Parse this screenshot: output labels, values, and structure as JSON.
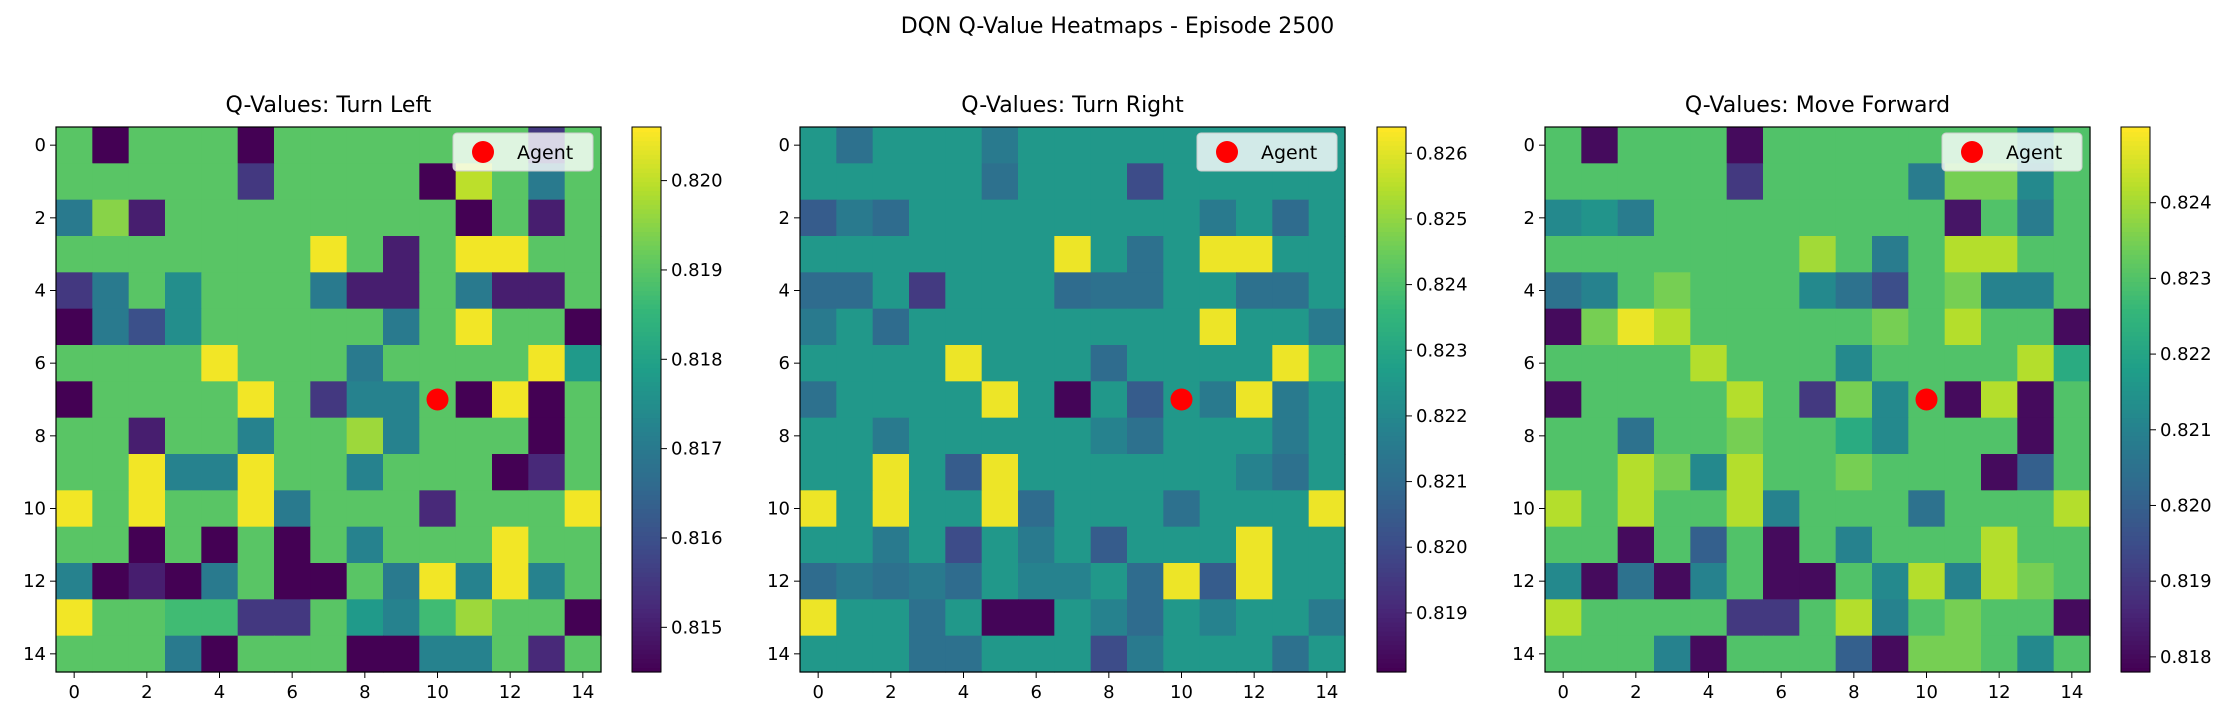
{
  "figure": {
    "title": "DQN Q-Value Heatmaps - Episode 2500"
  },
  "chart_data": [
    {
      "type": "heatmap",
      "title": "Q-Values: Turn Left",
      "colormap": "viridis",
      "vmin": 0.8145,
      "vmax": 0.8206,
      "xticks": [
        0,
        2,
        4,
        6,
        8,
        10,
        12,
        14
      ],
      "yticks": [
        0,
        2,
        4,
        6,
        8,
        10,
        12,
        14
      ],
      "colorbar_ticks": [
        0.815,
        0.816,
        0.817,
        0.818,
        0.819,
        0.82
      ],
      "legend": {
        "label": "Agent",
        "placement": "upper right"
      },
      "agent": {
        "x": 10,
        "y": 7,
        "color": "#ff0000"
      },
      "z": [
        [
          0.819,
          0.8145,
          0.819,
          0.819,
          0.819,
          0.8145,
          0.819,
          0.819,
          0.819,
          0.819,
          0.819,
          0.819,
          0.819,
          0.8155,
          0.819
        ],
        [
          0.819,
          0.819,
          0.819,
          0.819,
          0.819,
          0.8155,
          0.819,
          0.819,
          0.819,
          0.819,
          0.8145,
          0.82,
          0.819,
          0.817,
          0.819
        ],
        [
          0.817,
          0.8195,
          0.815,
          0.819,
          0.819,
          0.819,
          0.819,
          0.819,
          0.819,
          0.819,
          0.819,
          0.8145,
          0.819,
          0.815,
          0.819
        ],
        [
          0.819,
          0.819,
          0.819,
          0.819,
          0.819,
          0.819,
          0.819,
          0.8205,
          0.819,
          0.815,
          0.819,
          0.8205,
          0.8205,
          0.819,
          0.819
        ],
        [
          0.8155,
          0.817,
          0.819,
          0.8175,
          0.819,
          0.819,
          0.819,
          0.817,
          0.815,
          0.815,
          0.819,
          0.817,
          0.815,
          0.815,
          0.819
        ],
        [
          0.8145,
          0.817,
          0.816,
          0.8175,
          0.819,
          0.819,
          0.819,
          0.819,
          0.819,
          0.817,
          0.819,
          0.8205,
          0.819,
          0.819,
          0.8145
        ],
        [
          0.819,
          0.819,
          0.819,
          0.819,
          0.8205,
          0.819,
          0.819,
          0.819,
          0.817,
          0.819,
          0.819,
          0.819,
          0.819,
          0.8205,
          0.8178
        ],
        [
          0.8145,
          0.819,
          0.819,
          0.819,
          0.819,
          0.8205,
          0.819,
          0.8155,
          0.8172,
          0.8172,
          0.819,
          0.8145,
          0.8205,
          0.8145,
          0.819
        ],
        [
          0.819,
          0.819,
          0.815,
          0.819,
          0.819,
          0.8172,
          0.819,
          0.819,
          0.8197,
          0.8172,
          0.819,
          0.819,
          0.819,
          0.8145,
          0.819
        ],
        [
          0.819,
          0.819,
          0.8205,
          0.8172,
          0.8172,
          0.8205,
          0.819,
          0.819,
          0.8172,
          0.819,
          0.819,
          0.819,
          0.8145,
          0.8152,
          0.819
        ],
        [
          0.8205,
          0.819,
          0.8205,
          0.819,
          0.819,
          0.8205,
          0.817,
          0.819,
          0.819,
          0.819,
          0.8152,
          0.819,
          0.819,
          0.819,
          0.8205
        ],
        [
          0.819,
          0.819,
          0.8145,
          0.819,
          0.8145,
          0.819,
          0.8145,
          0.819,
          0.8172,
          0.819,
          0.819,
          0.819,
          0.8205,
          0.819,
          0.819
        ],
        [
          0.8172,
          0.8145,
          0.815,
          0.8145,
          0.817,
          0.819,
          0.8145,
          0.8145,
          0.819,
          0.817,
          0.8205,
          0.8172,
          0.8205,
          0.8172,
          0.819
        ],
        [
          0.8205,
          0.819,
          0.819,
          0.8187,
          0.8187,
          0.8155,
          0.8155,
          0.819,
          0.8178,
          0.8172,
          0.8187,
          0.8197,
          0.819,
          0.819,
          0.8145
        ],
        [
          0.819,
          0.819,
          0.819,
          0.817,
          0.8145,
          0.819,
          0.819,
          0.819,
          0.8145,
          0.8145,
          0.8172,
          0.8172,
          0.819,
          0.8152,
          0.819
        ]
      ]
    },
    {
      "type": "heatmap",
      "title": "Q-Values: Turn Right",
      "colormap": "viridis",
      "vmin": 0.8181,
      "vmax": 0.8264,
      "xticks": [
        0,
        2,
        4,
        6,
        8,
        10,
        12,
        14
      ],
      "yticks": [
        0,
        2,
        4,
        6,
        8,
        10,
        12,
        14
      ],
      "colorbar_ticks": [
        0.819,
        0.82,
        0.821,
        0.822,
        0.823,
        0.824,
        0.825,
        0.826
      ],
      "legend": {
        "label": "Agent",
        "placement": "upper right"
      },
      "agent": {
        "x": 10,
        "y": 7,
        "color": "#ff0000"
      },
      "z": [
        [
          0.8225,
          0.8212,
          0.8225,
          0.8225,
          0.8225,
          0.8215,
          0.8225,
          0.8225,
          0.8225,
          0.8225,
          0.8225,
          0.8225,
          0.8225,
          0.8225,
          0.8225
        ],
        [
          0.8225,
          0.8225,
          0.8225,
          0.8225,
          0.8225,
          0.8212,
          0.8225,
          0.8225,
          0.8225,
          0.82,
          0.8225,
          0.8225,
          0.8225,
          0.8225,
          0.8225
        ],
        [
          0.8205,
          0.8215,
          0.821,
          0.8225,
          0.8225,
          0.8225,
          0.8225,
          0.8225,
          0.8225,
          0.8225,
          0.8225,
          0.8215,
          0.8225,
          0.821,
          0.8225
        ],
        [
          0.8225,
          0.8225,
          0.8225,
          0.8225,
          0.8225,
          0.8225,
          0.8225,
          0.8262,
          0.8225,
          0.8212,
          0.8225,
          0.8262,
          0.8262,
          0.8225,
          0.8225
        ],
        [
          0.821,
          0.821,
          0.8225,
          0.8195,
          0.8225,
          0.8225,
          0.8225,
          0.821,
          0.8212,
          0.8212,
          0.8225,
          0.8225,
          0.8212,
          0.8212,
          0.8225
        ],
        [
          0.8215,
          0.8225,
          0.821,
          0.8225,
          0.8225,
          0.8225,
          0.8225,
          0.8225,
          0.8225,
          0.8225,
          0.8225,
          0.8262,
          0.8225,
          0.8225,
          0.8215
        ],
        [
          0.8225,
          0.8225,
          0.8225,
          0.8225,
          0.8262,
          0.8225,
          0.8225,
          0.8225,
          0.821,
          0.8225,
          0.8225,
          0.8225,
          0.8225,
          0.8262,
          0.8238
        ],
        [
          0.8212,
          0.8225,
          0.8225,
          0.8225,
          0.8225,
          0.8262,
          0.8225,
          0.8182,
          0.8225,
          0.8205,
          0.8225,
          0.8215,
          0.8262,
          0.8215,
          0.8225
        ],
        [
          0.8225,
          0.8225,
          0.8215,
          0.8225,
          0.8225,
          0.8225,
          0.8225,
          0.8225,
          0.8218,
          0.8212,
          0.8225,
          0.8225,
          0.8225,
          0.8215,
          0.8225
        ],
        [
          0.8225,
          0.8225,
          0.8262,
          0.8225,
          0.8205,
          0.8262,
          0.8225,
          0.8225,
          0.8225,
          0.8225,
          0.8225,
          0.8225,
          0.8218,
          0.8212,
          0.8225
        ],
        [
          0.8262,
          0.8225,
          0.8262,
          0.8225,
          0.8225,
          0.8262,
          0.821,
          0.8225,
          0.8225,
          0.8225,
          0.8212,
          0.8225,
          0.8225,
          0.8225,
          0.8262
        ],
        [
          0.8225,
          0.8225,
          0.8215,
          0.8225,
          0.82,
          0.8225,
          0.8215,
          0.8225,
          0.8205,
          0.8225,
          0.8225,
          0.8225,
          0.8262,
          0.8225,
          0.8225
        ],
        [
          0.821,
          0.8215,
          0.8212,
          0.8215,
          0.821,
          0.8225,
          0.8218,
          0.8218,
          0.8225,
          0.821,
          0.8262,
          0.8205,
          0.8262,
          0.8225,
          0.8225
        ],
        [
          0.8262,
          0.8225,
          0.8225,
          0.8212,
          0.8225,
          0.8182,
          0.8182,
          0.8225,
          0.8218,
          0.821,
          0.8225,
          0.8218,
          0.8225,
          0.8225,
          0.8215
        ],
        [
          0.8225,
          0.8225,
          0.8225,
          0.8212,
          0.8212,
          0.8225,
          0.8225,
          0.8225,
          0.82,
          0.8215,
          0.8225,
          0.8225,
          0.8225,
          0.8212,
          0.8225
        ]
      ]
    },
    {
      "type": "heatmap",
      "title": "Q-Values: Move Forward",
      "colormap": "viridis",
      "vmin": 0.8178,
      "vmax": 0.825,
      "xticks": [
        0,
        2,
        4,
        6,
        8,
        10,
        12,
        14
      ],
      "yticks": [
        0,
        2,
        4,
        6,
        8,
        10,
        12,
        14
      ],
      "colorbar_ticks": [
        0.818,
        0.819,
        0.82,
        0.821,
        0.822,
        0.823,
        0.824
      ],
      "legend": {
        "label": "Agent",
        "placement": "upper right"
      },
      "agent": {
        "x": 10,
        "y": 7,
        "color": "#ff0000"
      },
      "z": [
        [
          0.823,
          0.818,
          0.823,
          0.823,
          0.823,
          0.818,
          0.823,
          0.823,
          0.823,
          0.823,
          0.823,
          0.823,
          0.823,
          0.8215,
          0.823
        ],
        [
          0.823,
          0.823,
          0.823,
          0.823,
          0.823,
          0.819,
          0.823,
          0.823,
          0.823,
          0.823,
          0.8208,
          0.8235,
          0.8235,
          0.8212,
          0.823
        ],
        [
          0.8212,
          0.8215,
          0.8208,
          0.823,
          0.823,
          0.823,
          0.823,
          0.823,
          0.823,
          0.823,
          0.823,
          0.8182,
          0.823,
          0.8208,
          0.823
        ],
        [
          0.823,
          0.823,
          0.823,
          0.823,
          0.823,
          0.823,
          0.823,
          0.824,
          0.823,
          0.8208,
          0.823,
          0.8242,
          0.8242,
          0.823,
          0.823
        ],
        [
          0.8205,
          0.821,
          0.823,
          0.8235,
          0.823,
          0.823,
          0.823,
          0.8212,
          0.8205,
          0.8195,
          0.823,
          0.8235,
          0.821,
          0.821,
          0.823
        ],
        [
          0.818,
          0.8235,
          0.8248,
          0.8242,
          0.823,
          0.823,
          0.823,
          0.823,
          0.823,
          0.8235,
          0.823,
          0.8242,
          0.823,
          0.823,
          0.818
        ],
        [
          0.823,
          0.823,
          0.823,
          0.823,
          0.8242,
          0.823,
          0.823,
          0.823,
          0.8212,
          0.823,
          0.823,
          0.823,
          0.823,
          0.8242,
          0.8222
        ],
        [
          0.818,
          0.823,
          0.823,
          0.823,
          0.823,
          0.8242,
          0.823,
          0.819,
          0.8235,
          0.8212,
          0.823,
          0.818,
          0.8242,
          0.818,
          0.823
        ],
        [
          0.823,
          0.823,
          0.8205,
          0.823,
          0.823,
          0.8235,
          0.823,
          0.823,
          0.8222,
          0.8212,
          0.823,
          0.823,
          0.823,
          0.818,
          0.823
        ],
        [
          0.823,
          0.823,
          0.8242,
          0.8235,
          0.8212,
          0.8242,
          0.823,
          0.823,
          0.8235,
          0.823,
          0.823,
          0.823,
          0.818,
          0.82,
          0.823
        ],
        [
          0.8242,
          0.823,
          0.8242,
          0.823,
          0.823,
          0.8242,
          0.821,
          0.823,
          0.823,
          0.823,
          0.8205,
          0.823,
          0.823,
          0.823,
          0.8242
        ],
        [
          0.823,
          0.823,
          0.818,
          0.823,
          0.82,
          0.823,
          0.818,
          0.823,
          0.821,
          0.823,
          0.823,
          0.823,
          0.8242,
          0.823,
          0.823
        ],
        [
          0.8212,
          0.818,
          0.8205,
          0.818,
          0.821,
          0.823,
          0.818,
          0.818,
          0.823,
          0.8212,
          0.8242,
          0.821,
          0.8242,
          0.8235,
          0.823
        ],
        [
          0.8242,
          0.823,
          0.823,
          0.823,
          0.823,
          0.819,
          0.819,
          0.823,
          0.8242,
          0.821,
          0.823,
          0.8235,
          0.823,
          0.823,
          0.818
        ],
        [
          0.823,
          0.823,
          0.823,
          0.821,
          0.818,
          0.823,
          0.823,
          0.823,
          0.82,
          0.818,
          0.8235,
          0.8235,
          0.823,
          0.8212,
          0.823
        ]
      ]
    }
  ]
}
